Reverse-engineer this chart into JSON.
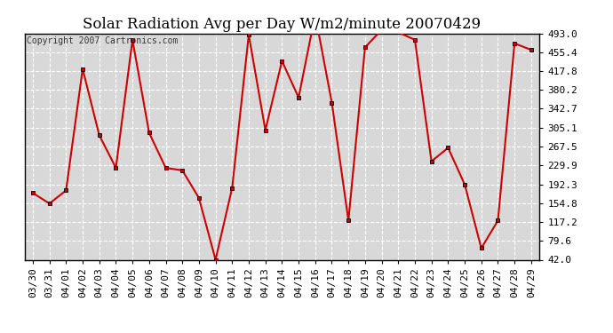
{
  "title": "Solar Radiation Avg per Day W/m2/minute 20070429",
  "copyright": "Copyright 2007 Cartronics.com",
  "labels": [
    "03/30",
    "03/31",
    "04/01",
    "04/02",
    "04/03",
    "04/04",
    "04/05",
    "04/06",
    "04/07",
    "04/08",
    "04/09",
    "04/10",
    "04/11",
    "04/12",
    "04/13",
    "04/14",
    "04/15",
    "04/16",
    "04/17",
    "04/18",
    "04/19",
    "04/20",
    "04/21",
    "04/22",
    "04/23",
    "04/24",
    "04/25",
    "04/26",
    "04/27",
    "04/28",
    "04/29"
  ],
  "values": [
    175,
    154,
    180,
    422,
    290,
    225,
    480,
    295,
    225,
    220,
    165,
    42,
    185,
    490,
    300,
    438,
    365,
    530,
    355,
    120,
    465,
    500,
    495,
    480,
    238,
    265,
    192,
    65,
    120,
    473,
    460
  ],
  "yticks": [
    42.0,
    79.6,
    117.2,
    154.8,
    192.3,
    229.9,
    267.5,
    305.1,
    342.7,
    380.2,
    417.8,
    455.4,
    493.0
  ],
  "line_color": "#cc0000",
  "marker_color": "#000000",
  "bg_color": "#d8d8d8",
  "title_fontsize": 12,
  "tick_fontsize": 8,
  "copyright_fontsize": 7,
  "ymin": 42.0,
  "ymax": 493.0,
  "figwidth": 6.9,
  "figheight": 3.75,
  "dpi": 100
}
